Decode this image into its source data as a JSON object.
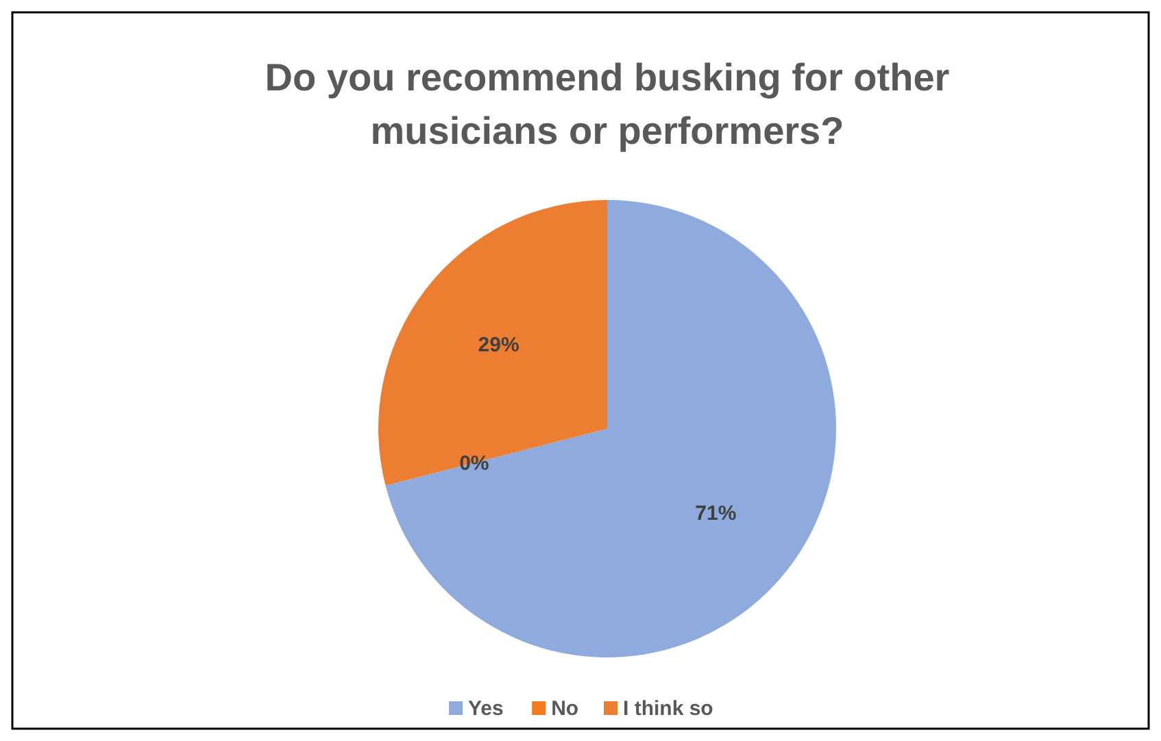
{
  "chart_data": {
    "type": "pie",
    "title": "Do you recommend busking for other musicians or performers?",
    "categories": [
      "Yes",
      "No",
      "I think so"
    ],
    "values": [
      71,
      0,
      29
    ],
    "colors": [
      "#8faadc",
      "#f47b20",
      "#ed7d31"
    ],
    "value_labels": [
      "71%",
      "0%",
      "29%"
    ],
    "legend": "bottom"
  }
}
